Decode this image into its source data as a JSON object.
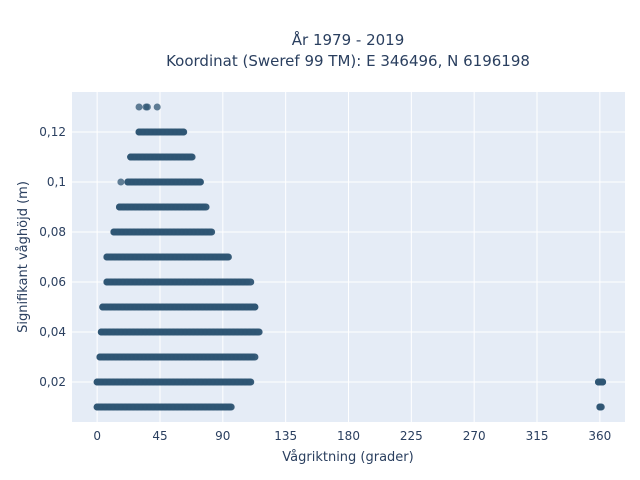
{
  "chart_data": {
    "type": "scatter",
    "title_lines": [
      "År 1979 - 2019",
      "Koordinat (Sweref 99 TM): E 346496, N 6196198"
    ],
    "xlabel": "Vågriktning (grader)",
    "ylabel": "Signifikant våghöjd (m)",
    "xlim": [
      -18,
      378
    ],
    "ylim": [
      0.004,
      0.136
    ],
    "x_ticks": [
      0,
      45,
      90,
      135,
      180,
      225,
      270,
      315,
      360
    ],
    "x_tick_labels": [
      "0",
      "45",
      "90",
      "135",
      "180",
      "225",
      "270",
      "315",
      "360"
    ],
    "y_ticks": [
      0.02,
      0.04,
      0.06,
      0.08,
      0.1,
      0.12
    ],
    "y_tick_labels": [
      "0,02",
      "0,04",
      "0,06",
      "0,08",
      "0,1",
      "0,12"
    ],
    "grid": true,
    "background": "#e5ecf6",
    "marker_color": "#2f5573",
    "point_bands": [
      {
        "y": 0.01,
        "x_min": 0,
        "x_max": 96
      },
      {
        "y": 0.01,
        "x_min": 360,
        "x_max": 361
      },
      {
        "y": 0.02,
        "x_min": 0,
        "x_max": 110
      },
      {
        "y": 0.02,
        "x_min": 359,
        "x_max": 362
      },
      {
        "y": 0.03,
        "x_min": 2,
        "x_max": 113
      },
      {
        "y": 0.04,
        "x_min": 3,
        "x_max": 116
      },
      {
        "y": 0.05,
        "x_min": 4,
        "x_max": 113
      },
      {
        "y": 0.06,
        "x_min": 7,
        "x_max": 110
      },
      {
        "y": 0.07,
        "x_min": 7,
        "x_max": 94
      },
      {
        "y": 0.08,
        "x_min": 12,
        "x_max": 82
      },
      {
        "y": 0.09,
        "x_min": 16,
        "x_max": 78
      },
      {
        "y": 0.1,
        "x_min": 22,
        "x_max": 74
      },
      {
        "y": 0.11,
        "x_min": 24,
        "x_max": 68
      },
      {
        "y": 0.12,
        "x_min": 30,
        "x_max": 62
      }
    ],
    "isolated_points": [
      {
        "x": 17,
        "y": 0.1
      },
      {
        "x": 30,
        "y": 0.13
      },
      {
        "x": 35,
        "y": 0.13
      },
      {
        "x": 36,
        "y": 0.13
      },
      {
        "x": 43,
        "y": 0.13
      }
    ]
  }
}
